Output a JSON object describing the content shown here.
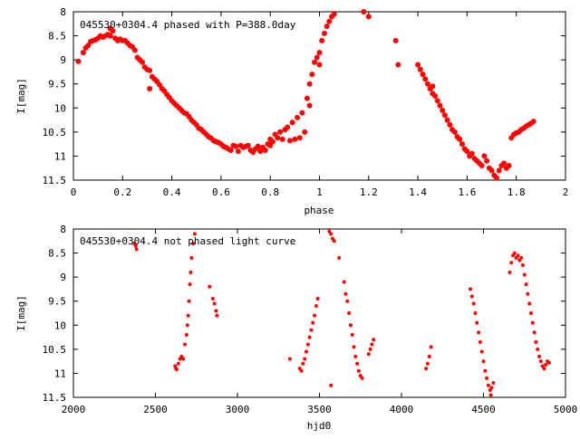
{
  "chart_data": [
    {
      "type": "scatter",
      "title": "045530+0304.4 phased with P=388.0day",
      "xlabel": "phase",
      "ylabel": "I[mag]",
      "xlim": [
        0,
        2
      ],
      "ylim": [
        8,
        11.5
      ],
      "y_inverted": true,
      "xticks": [
        "0",
        "0.2",
        "0.4",
        "0.6",
        "0.8",
        "1",
        "1.2",
        "1.4",
        "1.6",
        "1.8",
        "2"
      ],
      "yticks": [
        "8",
        "8.5",
        "9",
        "9.5",
        "10",
        "10.5",
        "11",
        "11.5"
      ],
      "marker_color": "#ff0000",
      "marker": "filled-circle",
      "points": [
        [
          0.02,
          9.03
        ],
        [
          0.04,
          8.85
        ],
        [
          0.05,
          8.75
        ],
        [
          0.06,
          8.7
        ],
        [
          0.07,
          8.62
        ],
        [
          0.08,
          8.6
        ],
        [
          0.09,
          8.58
        ],
        [
          0.1,
          8.55
        ],
        [
          0.11,
          8.5
        ],
        [
          0.12,
          8.53
        ],
        [
          0.13,
          8.5
        ],
        [
          0.14,
          8.47
        ],
        [
          0.15,
          8.5
        ],
        [
          0.15,
          8.35
        ],
        [
          0.16,
          8.4
        ],
        [
          0.17,
          8.55
        ],
        [
          0.18,
          8.6
        ],
        [
          0.19,
          8.57
        ],
        [
          0.2,
          8.6
        ],
        [
          0.21,
          8.6
        ],
        [
          0.22,
          8.65
        ],
        [
          0.23,
          8.7
        ],
        [
          0.24,
          8.73
        ],
        [
          0.25,
          8.8
        ],
        [
          0.26,
          8.95
        ],
        [
          0.27,
          9.0
        ],
        [
          0.28,
          9.05
        ],
        [
          0.29,
          9.15
        ],
        [
          0.3,
          9.2
        ],
        [
          0.31,
          9.22
        ],
        [
          0.31,
          9.6
        ],
        [
          0.32,
          9.35
        ],
        [
          0.33,
          9.4
        ],
        [
          0.34,
          9.45
        ],
        [
          0.35,
          9.52
        ],
        [
          0.36,
          9.6
        ],
        [
          0.37,
          9.65
        ],
        [
          0.38,
          9.72
        ],
        [
          0.39,
          9.78
        ],
        [
          0.4,
          9.85
        ],
        [
          0.41,
          9.9
        ],
        [
          0.42,
          9.95
        ],
        [
          0.43,
          10.0
        ],
        [
          0.44,
          10.05
        ],
        [
          0.45,
          10.1
        ],
        [
          0.46,
          10.12
        ],
        [
          0.47,
          10.18
        ],
        [
          0.48,
          10.25
        ],
        [
          0.49,
          10.3
        ],
        [
          0.5,
          10.35
        ],
        [
          0.51,
          10.42
        ],
        [
          0.52,
          10.45
        ],
        [
          0.53,
          10.5
        ],
        [
          0.54,
          10.55
        ],
        [
          0.55,
          10.6
        ],
        [
          0.56,
          10.63
        ],
        [
          0.57,
          10.68
        ],
        [
          0.58,
          10.7
        ],
        [
          0.59,
          10.72
        ],
        [
          0.6,
          10.75
        ],
        [
          0.61,
          10.8
        ],
        [
          0.62,
          10.82
        ],
        [
          0.63,
          10.85
        ],
        [
          0.64,
          10.88
        ],
        [
          0.65,
          10.78
        ],
        [
          0.66,
          10.8
        ],
        [
          0.67,
          10.9
        ],
        [
          0.68,
          10.78
        ],
        [
          0.69,
          10.82
        ],
        [
          0.7,
          10.8
        ],
        [
          0.71,
          10.78
        ],
        [
          0.72,
          10.88
        ],
        [
          0.73,
          10.92
        ],
        [
          0.74,
          10.85
        ],
        [
          0.75,
          10.8
        ],
        [
          0.76,
          10.9
        ],
        [
          0.77,
          10.82
        ],
        [
          0.78,
          10.88
        ],
        [
          0.79,
          10.75
        ],
        [
          0.8,
          10.78
        ],
        [
          0.8,
          10.65
        ],
        [
          0.81,
          10.7
        ],
        [
          0.82,
          10.55
        ],
        [
          0.83,
          10.62
        ],
        [
          0.84,
          10.5
        ],
        [
          0.85,
          10.65
        ],
        [
          0.86,
          10.45
        ],
        [
          0.87,
          10.4
        ],
        [
          0.88,
          10.68
        ],
        [
          0.89,
          10.3
        ],
        [
          0.9,
          10.65
        ],
        [
          0.91,
          10.2
        ],
        [
          0.92,
          10.62
        ],
        [
          0.93,
          10.1
        ],
        [
          0.94,
          10.5
        ],
        [
          0.95,
          9.8
        ],
        [
          0.96,
          9.95
        ],
        [
          0.96,
          9.5
        ],
        [
          0.97,
          9.3
        ],
        [
          0.98,
          9.05
        ],
        [
          0.99,
          8.95
        ],
        [
          1.0,
          9.1
        ],
        [
          1.0,
          8.85
        ],
        [
          1.01,
          8.6
        ],
        [
          1.02,
          8.45
        ],
        [
          1.03,
          8.3
        ],
        [
          1.04,
          8.2
        ],
        [
          1.05,
          8.1
        ],
        [
          1.06,
          8.05
        ],
        [
          1.18,
          8.0
        ],
        [
          1.2,
          8.1
        ],
        [
          1.31,
          8.6
        ],
        [
          1.32,
          9.1
        ],
        [
          1.4,
          9.1
        ],
        [
          1.41,
          9.2
        ],
        [
          1.42,
          9.3
        ],
        [
          1.43,
          9.4
        ],
        [
          1.44,
          9.5
        ],
        [
          1.45,
          9.6
        ],
        [
          1.46,
          9.7
        ],
        [
          1.46,
          9.55
        ],
        [
          1.47,
          9.75
        ],
        [
          1.48,
          9.85
        ],
        [
          1.49,
          9.95
        ],
        [
          1.5,
          10.05
        ],
        [
          1.51,
          10.15
        ],
        [
          1.52,
          10.25
        ],
        [
          1.53,
          10.35
        ],
        [
          1.54,
          10.45
        ],
        [
          1.55,
          10.5
        ],
        [
          1.56,
          10.6
        ],
        [
          1.57,
          10.65
        ],
        [
          1.58,
          10.75
        ],
        [
          1.59,
          10.85
        ],
        [
          1.6,
          10.9
        ],
        [
          1.61,
          11.0
        ],
        [
          1.62,
          10.95
        ],
        [
          1.63,
          11.05
        ],
        [
          1.64,
          11.1
        ],
        [
          1.65,
          11.15
        ],
        [
          1.66,
          11.2
        ],
        [
          1.67,
          11.0
        ],
        [
          1.68,
          11.1
        ],
        [
          1.69,
          11.25
        ],
        [
          1.7,
          11.3
        ],
        [
          1.71,
          11.4
        ],
        [
          1.72,
          11.45
        ],
        [
          1.73,
          11.3
        ],
        [
          1.74,
          11.2
        ],
        [
          1.75,
          11.15
        ],
        [
          1.76,
          11.25
        ],
        [
          1.77,
          11.2
        ],
        [
          1.78,
          10.62
        ],
        [
          1.79,
          10.55
        ],
        [
          1.8,
          10.52
        ],
        [
          1.81,
          10.5
        ],
        [
          1.82,
          10.45
        ],
        [
          1.83,
          10.42
        ],
        [
          1.84,
          10.38
        ],
        [
          1.85,
          10.35
        ],
        [
          1.86,
          10.32
        ],
        [
          1.87,
          10.28
        ]
      ]
    },
    {
      "type": "scatter",
      "title": "045530+0304.4 not phased light curve",
      "xlabel": "hjd0",
      "ylabel": "I[mag]",
      "xlim": [
        2000,
        5000
      ],
      "ylim": [
        8,
        11.5
      ],
      "y_inverted": true,
      "xticks": [
        "2000",
        "2500",
        "3000",
        "3500",
        "4000",
        "4500",
        "5000"
      ],
      "yticks": [
        "8",
        "8.5",
        "9",
        "9.5",
        "10",
        "10.5",
        "11",
        "11.5"
      ],
      "marker_color": "#ff0000",
      "marker": "filled-circle",
      "points": [
        [
          2370,
          8.3
        ],
        [
          2380,
          8.35
        ],
        [
          2385,
          8.42
        ],
        [
          2620,
          10.85
        ],
        [
          2625,
          10.9
        ],
        [
          2630,
          10.92
        ],
        [
          2640,
          10.8
        ],
        [
          2650,
          10.7
        ],
        [
          2660,
          10.65
        ],
        [
          2670,
          10.7
        ],
        [
          2680,
          10.4
        ],
        [
          2690,
          10.2
        ],
        [
          2695,
          10.0
        ],
        [
          2700,
          9.8
        ],
        [
          2705,
          9.5
        ],
        [
          2710,
          9.15
        ],
        [
          2715,
          8.9
        ],
        [
          2720,
          8.6
        ],
        [
          2730,
          8.3
        ],
        [
          2740,
          8.1
        ],
        [
          2830,
          9.2
        ],
        [
          2850,
          9.45
        ],
        [
          2860,
          9.55
        ],
        [
          2870,
          9.7
        ],
        [
          2875,
          9.8
        ],
        [
          3320,
          10.7
        ],
        [
          3380,
          10.9
        ],
        [
          3390,
          10.95
        ],
        [
          3400,
          10.8
        ],
        [
          3410,
          10.7
        ],
        [
          3420,
          10.55
        ],
        [
          3430,
          10.4
        ],
        [
          3440,
          10.25
        ],
        [
          3450,
          10.1
        ],
        [
          3460,
          9.95
        ],
        [
          3470,
          9.8
        ],
        [
          3480,
          9.6
        ],
        [
          3490,
          9.45
        ],
        [
          3560,
          8.05
        ],
        [
          3570,
          8.1
        ],
        [
          3580,
          8.2
        ],
        [
          3590,
          8.25
        ],
        [
          3620,
          8.6
        ],
        [
          3650,
          9.1
        ],
        [
          3660,
          9.35
        ],
        [
          3670,
          9.5
        ],
        [
          3680,
          9.75
        ],
        [
          3690,
          10.0
        ],
        [
          3700,
          10.2
        ],
        [
          3710,
          10.45
        ],
        [
          3720,
          10.65
        ],
        [
          3730,
          10.8
        ],
        [
          3740,
          10.95
        ],
        [
          3750,
          11.05
        ],
        [
          3760,
          11.1
        ],
        [
          3570,
          11.25
        ],
        [
          3800,
          10.6
        ],
        [
          3810,
          10.5
        ],
        [
          3820,
          10.4
        ],
        [
          3830,
          10.3
        ],
        [
          4150,
          10.9
        ],
        [
          4160,
          10.8
        ],
        [
          4170,
          10.65
        ],
        [
          4180,
          10.45
        ],
        [
          4420,
          9.25
        ],
        [
          4430,
          9.4
        ],
        [
          4440,
          9.55
        ],
        [
          4450,
          9.75
        ],
        [
          4460,
          9.95
        ],
        [
          4470,
          10.15
        ],
        [
          4480,
          10.35
        ],
        [
          4490,
          10.55
        ],
        [
          4500,
          10.75
        ],
        [
          4510,
          10.95
        ],
        [
          4520,
          11.1
        ],
        [
          4530,
          11.25
        ],
        [
          4540,
          11.35
        ],
        [
          4545,
          11.45
        ],
        [
          4550,
          11.3
        ],
        [
          4560,
          11.2
        ],
        [
          4660,
          8.9
        ],
        [
          4670,
          8.7
        ],
        [
          4680,
          8.55
        ],
        [
          4690,
          8.5
        ],
        [
          4700,
          8.6
        ],
        [
          4710,
          8.55
        ],
        [
          4720,
          8.65
        ],
        [
          4730,
          8.6
        ],
        [
          4740,
          8.75
        ],
        [
          4750,
          8.95
        ],
        [
          4760,
          9.15
        ],
        [
          4770,
          9.35
        ],
        [
          4780,
          9.55
        ],
        [
          4790,
          9.75
        ],
        [
          4800,
          9.95
        ],
        [
          4810,
          10.15
        ],
        [
          4820,
          10.35
        ],
        [
          4830,
          10.5
        ],
        [
          4840,
          10.65
        ],
        [
          4850,
          10.75
        ],
        [
          4860,
          10.85
        ],
        [
          4870,
          10.9
        ],
        [
          4880,
          10.82
        ],
        [
          4890,
          10.75
        ],
        [
          4900,
          10.78
        ]
      ]
    }
  ]
}
